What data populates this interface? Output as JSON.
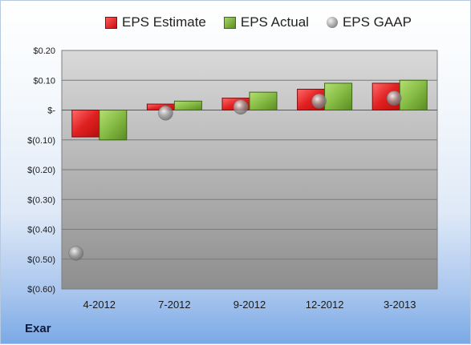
{
  "company": "Exar",
  "colors": {
    "estimate": "#e02020",
    "actual": "#86bb45",
    "gaap": "#9a9a9a"
  },
  "chart_data": {
    "type": "bar",
    "categories": [
      "4-2012",
      "7-2012",
      "9-2012",
      "12-2012",
      "3-2013"
    ],
    "series": [
      {
        "name": "EPS Estimate",
        "values": [
          -0.09,
          0.02,
          0.04,
          0.07,
          0.09
        ]
      },
      {
        "name": "EPS Actual",
        "values": [
          -0.1,
          0.03,
          0.06,
          0.09,
          0.1
        ]
      },
      {
        "name": "EPS GAAP",
        "values": [
          -0.48,
          -0.01,
          0.01,
          0.03,
          0.04
        ]
      }
    ],
    "ylim": [
      -0.6,
      0.2
    ],
    "yticks": [
      0.2,
      0.1,
      0.0,
      -0.1,
      -0.2,
      -0.3,
      -0.4,
      -0.5,
      -0.6
    ],
    "ytick_labels": [
      "$0.20",
      "$0.10",
      "$-",
      "$(0.10)",
      "$(0.20)",
      "$(0.30)",
      "$(0.40)",
      "$(0.50)",
      "$(0.60)"
    ],
    "grid": true,
    "legend_position": "top"
  }
}
